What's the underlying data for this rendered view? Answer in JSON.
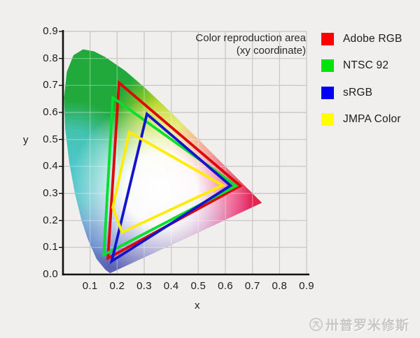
{
  "title": {
    "line1": "Color reproduction area",
    "line2": "(xy coordinate)"
  },
  "axes": {
    "x_label": "x",
    "y_label": "y",
    "x_ticks": [
      "0.1",
      "0.2",
      "0.3",
      "0.4",
      "0.5",
      "0.6",
      "0.7",
      "0.8",
      "0.9"
    ],
    "y_ticks": [
      "0.9",
      "0.8",
      "0.7",
      "0.6",
      "0.5",
      "0.4",
      "0.3",
      "0.2",
      "0.1",
      "0.0"
    ]
  },
  "legend": {
    "items": [
      {
        "label": "Adobe RGB",
        "color": "#fe0000"
      },
      {
        "label": "NTSC 92",
        "color": "#00e40c"
      },
      {
        "label": "sRGB",
        "color": "#0000f0"
      },
      {
        "label": "JMPA Color",
        "color": "#ffff00"
      }
    ]
  },
  "watermark": {
    "icon": "circled-logo-icon",
    "text": "卅普罗米修斯"
  },
  "chart_data": {
    "type": "line",
    "subtype": "cie-1931-xy-chromaticity-gamuts",
    "title": "Color reproduction area (xy coordinate)",
    "xlabel": "x",
    "ylabel": "y",
    "xlim": [
      0,
      0.9
    ],
    "ylim": [
      0,
      0.9
    ],
    "grid": true,
    "legend_position": "right-outside",
    "background": "cie-chromaticity-horseshoe-gradient",
    "series": [
      {
        "name": "Adobe RGB",
        "color": "#e00505",
        "points": [
          [
            0.207,
            0.71
          ],
          [
            0.655,
            0.328
          ],
          [
            0.166,
            0.06
          ]
        ]
      },
      {
        "name": "NTSC 92",
        "color": "#00e02c",
        "points": [
          [
            0.184,
            0.655
          ],
          [
            0.64,
            0.328
          ],
          [
            0.151,
            0.073
          ]
        ]
      },
      {
        "name": "sRGB",
        "color": "#1414cc",
        "points": [
          [
            0.31,
            0.594
          ],
          [
            0.619,
            0.329
          ],
          [
            0.18,
            0.049
          ]
        ]
      },
      {
        "name": "JMPA Color",
        "color": "#ffec00",
        "points": [
          [
            0.245,
            0.527
          ],
          [
            0.59,
            0.33
          ],
          [
            0.218,
            0.156
          ],
          [
            0.184,
            0.248
          ]
        ]
      }
    ]
  }
}
